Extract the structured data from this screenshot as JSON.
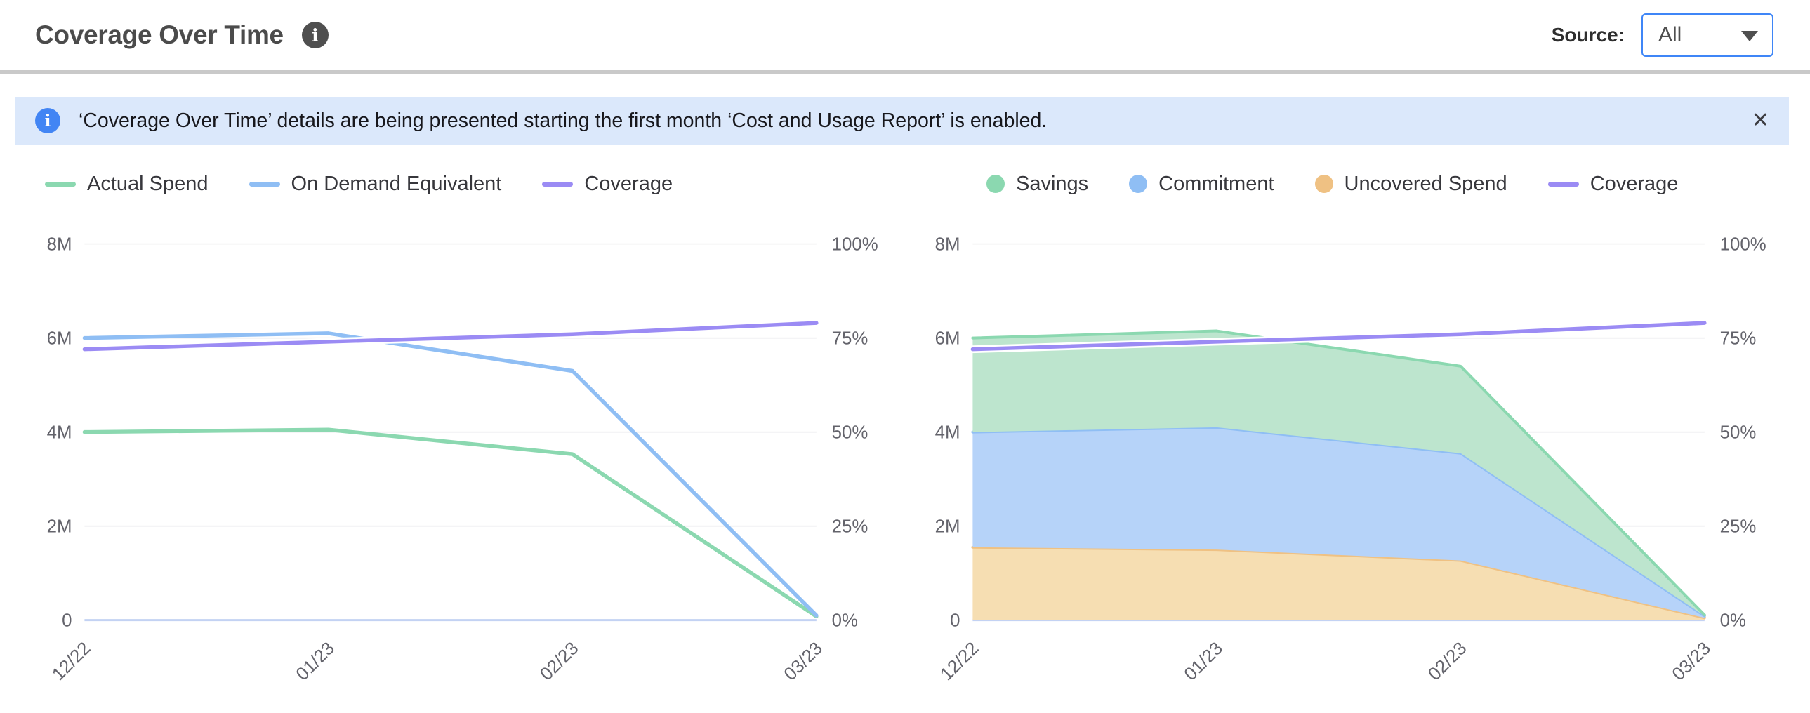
{
  "header": {
    "title": "Coverage Over Time",
    "source_label": "Source:",
    "source_value": "All"
  },
  "icons": {
    "info": "i",
    "close": "✕"
  },
  "banner": {
    "text": "‘Coverage Over Time’ details are being presented starting the first month ‘Cost and Usage Report’ is enabled."
  },
  "colors": {
    "accent_blue": "#3F86F7",
    "banner_bg": "#DBE8FB",
    "divider": "#C9C9C9",
    "grid": "#E3E3E6",
    "zero_line": "#C3D2F3",
    "tick_text": "#63636B",
    "green": "#8BD8B0",
    "blue": "#8FBEF4",
    "purple": "#9B8BF4",
    "orange": "#EFC183"
  },
  "chart_data": [
    {
      "type": "line",
      "categories": [
        "12/22",
        "01/23",
        "02/23",
        "03/23"
      ],
      "left_axis": {
        "label_ticks": [
          "8M",
          "6M",
          "4M",
          "2M",
          "0"
        ],
        "max": 8000000
      },
      "right_axis": {
        "label_ticks": [
          "100%",
          "75%",
          "50%",
          "25%",
          "0%"
        ],
        "max": 100
      },
      "grid": true,
      "legend_position": "top-left",
      "series": [
        {
          "name": "Actual Spend",
          "render": "line",
          "axis": "left",
          "color": "#8BD8B0",
          "values": [
            4000000,
            4050000,
            3530000,
            80000
          ]
        },
        {
          "name": "On Demand Equivalent",
          "render": "line",
          "axis": "left",
          "color": "#8FBEF4",
          "values": [
            6000000,
            6100000,
            5300000,
            100000
          ]
        },
        {
          "name": "Coverage",
          "render": "line",
          "axis": "right",
          "color": "#9B8BF4",
          "halo": true,
          "unit": "%",
          "values": [
            72,
            74,
            76,
            79
          ]
        }
      ],
      "legend": [
        {
          "label": "Actual Spend",
          "marker": "line",
          "color": "#8BD8B0"
        },
        {
          "label": "On Demand Equivalent",
          "marker": "line",
          "color": "#8FBEF4"
        },
        {
          "label": "Coverage",
          "marker": "line",
          "color": "#9B8BF4"
        }
      ]
    },
    {
      "type": "area",
      "stacked": true,
      "categories": [
        "12/22",
        "01/23",
        "02/23",
        "03/23"
      ],
      "left_axis": {
        "label_ticks": [
          "8M",
          "6M",
          "4M",
          "2M",
          "0"
        ],
        "max": 8000000
      },
      "right_axis": {
        "label_ticks": [
          "100%",
          "75%",
          "50%",
          "25%",
          "0%"
        ],
        "max": 100
      },
      "grid": true,
      "legend_position": "top-left",
      "series": [
        {
          "name": "Uncovered Spend",
          "render": "area",
          "axis": "left",
          "color": "#EFC183",
          "fill": "#F6DEB2",
          "values": [
            1550000,
            1500000,
            1270000,
            50000
          ]
        },
        {
          "name": "Commitment",
          "render": "area",
          "axis": "left",
          "color": "#8FBEF4",
          "fill": "#B6D3F9",
          "values": [
            2450000,
            2600000,
            2280000,
            40000
          ]
        },
        {
          "name": "Savings",
          "render": "area",
          "axis": "left",
          "color": "#8BD8B0",
          "fill": "#BDE5CE",
          "values": [
            2000000,
            2050000,
            1850000,
            20000
          ]
        },
        {
          "name": "Coverage",
          "render": "line",
          "axis": "right",
          "color": "#9B8BF4",
          "halo": true,
          "unit": "%",
          "values": [
            72,
            74,
            76,
            79
          ]
        }
      ],
      "legend": [
        {
          "label": "Savings",
          "marker": "dot",
          "color": "#8BD8B0"
        },
        {
          "label": "Commitment",
          "marker": "dot",
          "color": "#8FBEF4"
        },
        {
          "label": "Uncovered Spend",
          "marker": "dot",
          "color": "#EFC183"
        },
        {
          "label": "Coverage",
          "marker": "line",
          "color": "#9B8BF4"
        }
      ]
    }
  ]
}
